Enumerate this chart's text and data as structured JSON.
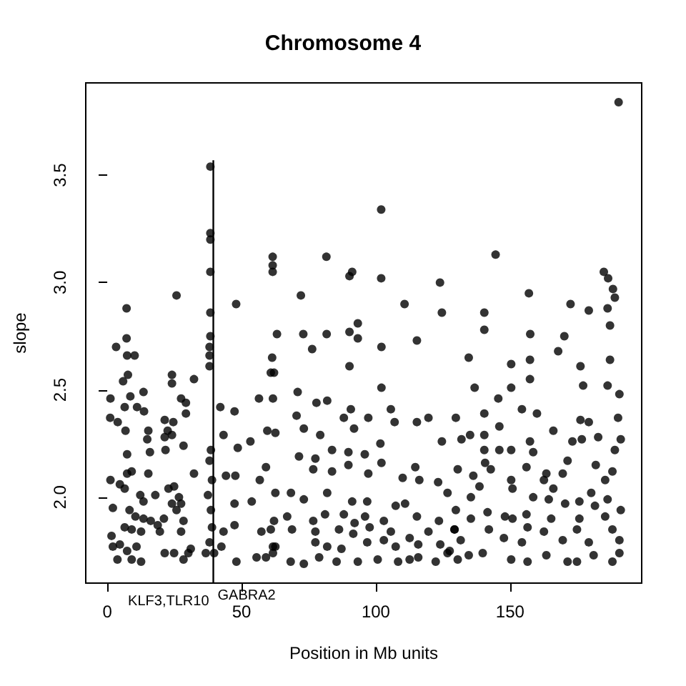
{
  "chart_data": {
    "type": "scatter",
    "title": "Chromosome 4",
    "xlabel": "Position in Mb units",
    "ylabel": "slope",
    "xlim": [
      -8,
      199
    ],
    "ylim": [
      1.6,
      3.93
    ],
    "xticks": [
      0,
      50,
      100,
      150
    ],
    "yticks": [
      {
        "value": 2,
        "label": "2.0"
      },
      {
        "value": 2.5,
        "label": "2.5"
      },
      {
        "value": 3,
        "label": "3.0"
      },
      {
        "value": 3.5,
        "label": "3.5"
      }
    ],
    "grid": false,
    "marker": "circle",
    "annotations": [
      "KLF3,TLR10",
      "GABRA2"
    ],
    "series": [
      {
        "color": "#000000",
        "x": [
          190.4,
          102,
          38.4,
          38.4,
          38.4,
          38.4,
          25.8,
          7.2,
          48,
          61.6,
          61.6,
          61.6,
          7.2,
          38.4,
          38.4,
          81.6,
          72.1,
          90.2,
          91.2,
          102,
          123.9,
          110.7,
          124.6,
          63.2,
          73,
          81.7,
          90.2,
          93.3,
          93.3,
          115.3,
          144.6,
          184.9,
          186.5,
          188.3,
          189,
          157,
          140.4,
          172.5,
          179.3,
          186.3,
          187.2,
          140.4,
          157.5,
          170.2,
          3.3,
          7.4,
          10.2,
          7.7,
          5.9,
          24.1,
          24.1,
          32.3,
          1.2,
          8.6,
          13.5,
          6.5,
          11.1,
          1.1,
          3.9,
          13.7,
          27.5,
          29.3,
          29.3,
          21.4,
          24.6,
          22.5,
          24.1,
          21.4,
          6.8,
          15.3,
          14.9,
          15.9,
          7.4,
          28.4,
          21.7,
          1.2,
          4.7,
          7.4,
          9.1,
          15.3,
          32.3,
          6.5,
          12.3,
          17.9,
          22.8,
          24.9,
          26.7,
          27.5,
          13.5,
          2.1,
          8.3,
          10.5,
          13.5,
          16.2,
          18.8,
          21.1,
          24.1,
          25.8,
          28.4,
          6.5,
          9.1,
          12.6,
          19.6,
          27.5,
          1.6,
          2.1,
          4.7,
          3.8,
          7.4,
          9.1,
          12.6,
          10.9,
          21.4,
          24.9,
          28.4,
          30.2,
          31.1,
          36.7,
          38.1,
          38.1,
          38.1,
          38.6,
          38.1,
          39,
          37.5,
          38.6,
          39,
          38.1,
          39.8,
          42.1,
          47.4,
          43.3,
          48.6,
          44.2,
          47.7,
          47.4,
          47.4,
          43.3,
          48.1,
          42.5,
          53.3,
          56.5,
          60.9,
          59.6,
          59.1,
          56.8,
          53.8,
          57.4,
          55.6,
          59.1,
          61.7,
          76.3,
          90.2,
          102.1,
          61.4,
          62.1,
          61.7,
          70.9,
          77.9,
          81.9,
          88.1,
          90.7,
          97.2,
          105.6,
          107,
          119.6,
          115.3,
          70.5,
          73.2,
          79.3,
          91.9,
          62.6,
          124.6,
          101.7,
          71.4,
          77.5,
          83.7,
          89.8,
          95.9,
          102.1,
          89.8,
          76.7,
          83.7,
          97.2,
          114.7,
          110,
          116.2,
          123.2,
          62.6,
          68.4,
          73.2,
          81.9,
          91.2,
          96.8,
          107.4,
          110.9,
          126.7,
          62.1,
          67,
          76.7,
          81.1,
          88.1,
          92.1,
          96,
          103,
          115.3,
          123.5,
          60.9,
          68.8,
          77.5,
          86.3,
          91.6,
          97.7,
          105.6,
          112.6,
          119.6,
          129.3,
          62.6,
          77.5,
          81.9,
          87.2,
          96.8,
          103,
          107.4,
          115.8,
          124,
          127.5,
          61.7,
          68.3,
          73.2,
          78.9,
          85.4,
          93.3,
          100.7,
          108.3,
          112.6,
          115.8,
          122.3,
          126.7,
          102.1,
          134.6,
          167.9,
          150.4,
          157.4,
          187.2,
          136.8,
          150.4,
          157.4,
          176.2,
          177.2,
          186.3,
          190.7,
          145.6,
          154.4,
          129.8,
          140.4,
          160,
          176.2,
          179.3,
          190.2,
          146,
          135.1,
          140.4,
          166.1,
          131.9,
          150.4,
          157.4,
          173.2,
          176.7,
          182.8,
          191.2,
          140.4,
          146,
          158.6,
          189,
          171.4,
          140.7,
          181.9,
          130.5,
          142.8,
          156.1,
          163.5,
          169.6,
          188.1,
          136.3,
          150.4,
          162.6,
          185.4,
          138.6,
          150.9,
          166.1,
          180.2,
          135.4,
          158.6,
          164.4,
          175.8,
          186.3,
          129.8,
          141.6,
          148.1,
          156.1,
          170.5,
          181.6,
          191.2,
          135.4,
          150.9,
          165.3,
          175.8,
          185.4,
          129.3,
          142.1,
          156.5,
          162.6,
          174.9,
          188.1,
          131.6,
          147.7,
          154.4,
          169.6,
          179.3,
          190.7,
          134.6,
          139.8,
          150.4,
          156.5,
          163.5,
          171.4,
          174.9,
          181.1,
          188.1,
          190.7,
          130.5
        ],
        "values": [
          3.84,
          3.34,
          3.54,
          3.23,
          3.2,
          3.05,
          2.94,
          2.88,
          2.9,
          3.12,
          3.08,
          3.05,
          2.74,
          2.86,
          2.75,
          3.12,
          2.94,
          3.03,
          3.05,
          3.02,
          3,
          2.9,
          2.86,
          2.76,
          2.76,
          2.76,
          2.77,
          2.81,
          2.74,
          2.73,
          3.13,
          3.05,
          3.02,
          2.97,
          2.93,
          2.95,
          2.86,
          2.9,
          2.87,
          2.88,
          2.8,
          2.78,
          2.76,
          2.75,
          2.7,
          2.66,
          2.66,
          2.57,
          2.54,
          2.57,
          2.53,
          2.55,
          2.46,
          2.47,
          2.49,
          2.42,
          2.42,
          2.37,
          2.35,
          2.4,
          2.46,
          2.44,
          2.39,
          2.36,
          2.35,
          2.31,
          2.29,
          2.28,
          2.31,
          2.31,
          2.27,
          2.21,
          2.2,
          2.24,
          2.22,
          2.08,
          2.06,
          2.11,
          2.12,
          2.11,
          2.11,
          2.04,
          2.01,
          2.01,
          2.04,
          2.05,
          2,
          1.97,
          1.98,
          1.95,
          1.94,
          1.91,
          1.9,
          1.89,
          1.87,
          1.9,
          1.97,
          1.94,
          1.89,
          1.86,
          1.85,
          1.84,
          1.84,
          1.84,
          1.82,
          1.77,
          1.78,
          1.71,
          1.75,
          1.71,
          1.7,
          1.77,
          1.74,
          1.74,
          1.71,
          1.74,
          1.76,
          1.74,
          2.7,
          2.66,
          2.61,
          2.22,
          2.17,
          2.08,
          2.01,
          1.94,
          1.86,
          1.79,
          1.74,
          2.42,
          2.4,
          2.29,
          2.23,
          2.1,
          2.1,
          1.97,
          1.87,
          1.84,
          1.7,
          1.77,
          2.26,
          2.46,
          2.58,
          2.31,
          2.14,
          2.08,
          1.98,
          1.84,
          1.72,
          1.72,
          1.77,
          2.69,
          2.61,
          2.51,
          2.65,
          2.58,
          2.46,
          2.49,
          2.44,
          2.45,
          2.37,
          2.41,
          2.37,
          2.41,
          2.35,
          2.37,
          2.35,
          2.38,
          2.32,
          2.29,
          2.32,
          2.3,
          2.26,
          2.25,
          2.19,
          2.18,
          2.22,
          2.21,
          2.2,
          2.16,
          2.15,
          2.13,
          2.12,
          2.11,
          2.14,
          2.09,
          2.08,
          2.07,
          2.02,
          2.02,
          1.99,
          2.02,
          1.98,
          1.98,
          1.96,
          1.97,
          2.02,
          1.89,
          1.91,
          1.89,
          1.92,
          1.92,
          1.88,
          1.91,
          1.89,
          1.91,
          1.89,
          1.85,
          1.85,
          1.84,
          1.85,
          1.83,
          1.86,
          1.84,
          1.81,
          1.84,
          1.85,
          1.77,
          1.79,
          1.77,
          1.76,
          1.79,
          1.8,
          1.77,
          1.78,
          1.78,
          1.75,
          1.74,
          1.7,
          1.69,
          1.72,
          1.7,
          1.7,
          1.71,
          1.7,
          1.71,
          1.72,
          1.7,
          1.74,
          2.7,
          2.65,
          2.68,
          2.62,
          2.64,
          2.64,
          2.51,
          2.51,
          2.55,
          2.61,
          2.52,
          2.52,
          2.48,
          2.46,
          2.41,
          2.37,
          2.39,
          2.39,
          2.36,
          2.35,
          2.37,
          2.33,
          2.29,
          2.29,
          2.31,
          2.27,
          2.22,
          2.26,
          2.26,
          2.27,
          2.28,
          2.27,
          2.22,
          2.22,
          2.21,
          2.22,
          2.17,
          2.16,
          2.15,
          2.13,
          2.13,
          2.14,
          2.11,
          2.11,
          2.12,
          2.1,
          2.08,
          2.08,
          2.08,
          2.05,
          2.04,
          2.04,
          2.02,
          2,
          2,
          1.99,
          1.98,
          1.99,
          1.94,
          1.93,
          1.91,
          1.92,
          1.97,
          1.96,
          1.94,
          1.9,
          1.9,
          1.9,
          1.9,
          1.91,
          1.85,
          1.85,
          1.86,
          1.84,
          1.85,
          1.85,
          1.8,
          1.81,
          1.79,
          1.8,
          1.79,
          1.8,
          1.73,
          1.74,
          1.71,
          1.7,
          1.73,
          1.7,
          1.7,
          1.73,
          1.7,
          1.74,
          1.71
        ]
      },
      {
        "type": "line",
        "color": "#000000",
        "marker": "none",
        "line_style": "solid",
        "x": [
          39.5,
          39.5
        ],
        "values": [
          1.6,
          3.57
        ]
      }
    ]
  }
}
